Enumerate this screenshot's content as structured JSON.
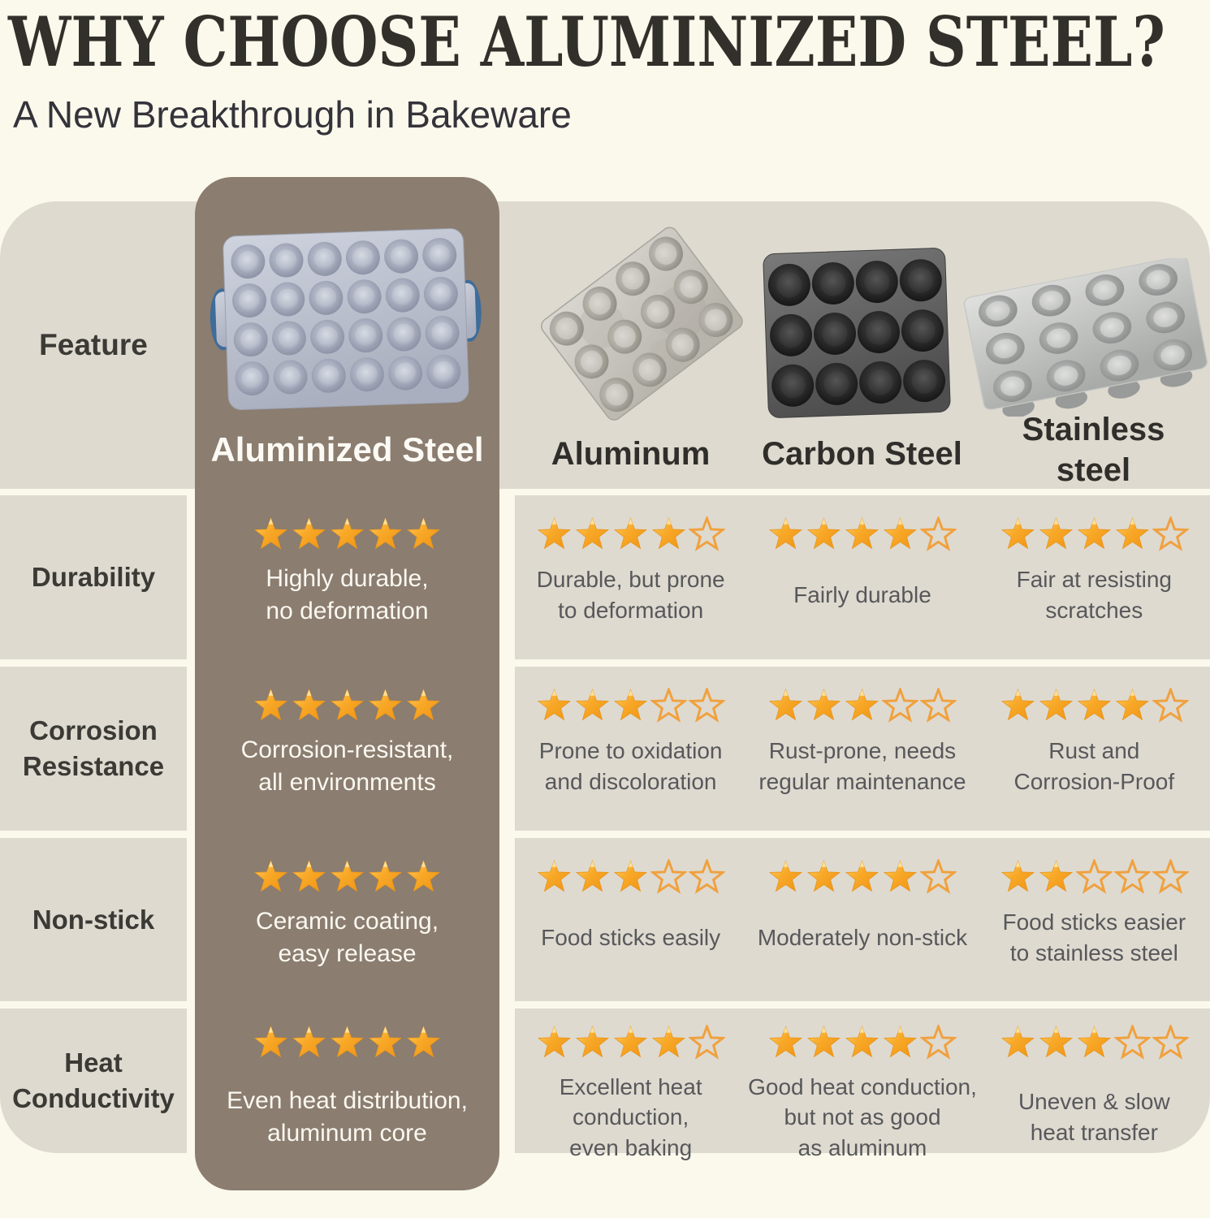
{
  "header": {
    "title": "WHY CHOOSE ALUMINIZED STEEL?",
    "subtitle": "A New Breakthrough in Bakeware"
  },
  "colors": {
    "page_background": "#FAF9EC",
    "cell_background": "#DEDAD0",
    "highlight_column": "#8B7D6F",
    "title_text": "#31302B",
    "body_text": "#58585B",
    "white_text": "#FAF8F1",
    "star_fill": "#F8A827",
    "star_outline": "#F0A13E",
    "handle_blue": "#3E6C9B"
  },
  "table": {
    "feature_column_header": "Feature",
    "products": [
      {
        "name": "Aluminized Steel",
        "image": "aluminized-steel-pan",
        "highlighted": true
      },
      {
        "name": "Aluminum",
        "image": "aluminum-pan",
        "highlighted": false
      },
      {
        "name": "Carbon Steel",
        "image": "carbon-steel-pan",
        "highlighted": false
      },
      {
        "name": "Stainless\nsteel",
        "image": "stainless-steel-pan",
        "highlighted": false
      }
    ],
    "rows": [
      {
        "feature": "Durability",
        "cells": [
          {
            "product": "Aluminized Steel",
            "stars": 5,
            "max_stars": 5,
            "text": "Highly durable,\nno deformation"
          },
          {
            "product": "Aluminum",
            "stars": 4,
            "max_stars": 5,
            "text": "Durable, but prone\nto deformation"
          },
          {
            "product": "Carbon Steel",
            "stars": 4,
            "max_stars": 5,
            "text": "Fairly durable"
          },
          {
            "product": "Stainless steel",
            "stars": 4,
            "max_stars": 5,
            "text": "Fair at resisting\nscratches"
          }
        ]
      },
      {
        "feature": "Corrosion\nResistance",
        "cells": [
          {
            "product": "Aluminized Steel",
            "stars": 5,
            "max_stars": 5,
            "text": "Corrosion-resistant,\nall environments"
          },
          {
            "product": "Aluminum",
            "stars": 3,
            "max_stars": 5,
            "text": "Prone to oxidation\nand discoloration"
          },
          {
            "product": "Carbon Steel",
            "stars": 3,
            "max_stars": 5,
            "text": "Rust-prone, needs\nregular maintenance"
          },
          {
            "product": "Stainless steel",
            "stars": 4,
            "max_stars": 5,
            "text": "Rust and\nCorrosion-Proof"
          }
        ]
      },
      {
        "feature": "Non-stick",
        "cells": [
          {
            "product": "Aluminized Steel",
            "stars": 5,
            "max_stars": 5,
            "text": "Ceramic coating,\neasy release"
          },
          {
            "product": "Aluminum",
            "stars": 3,
            "max_stars": 5,
            "text": "Food sticks easily"
          },
          {
            "product": "Carbon Steel",
            "stars": 4,
            "max_stars": 5,
            "text": "Moderately non-stick"
          },
          {
            "product": "Stainless steel",
            "stars": 2,
            "max_stars": 5,
            "text": "Food sticks easier\nto stainless steel"
          }
        ]
      },
      {
        "feature": "Heat\nConductivity",
        "cells": [
          {
            "product": "Aluminized Steel",
            "stars": 5,
            "max_stars": 5,
            "text": "Even heat distribution,\naluminum core"
          },
          {
            "product": "Aluminum",
            "stars": 4,
            "max_stars": 5,
            "text": "Excellent heat\nconduction,\neven baking"
          },
          {
            "product": "Carbon Steel",
            "stars": 4,
            "max_stars": 5,
            "text": "Good heat conduction,\nbut not as good\nas aluminum"
          },
          {
            "product": "Stainless steel",
            "stars": 3,
            "max_stars": 5,
            "text": "Uneven & slow\nheat transfer"
          }
        ]
      }
    ]
  }
}
